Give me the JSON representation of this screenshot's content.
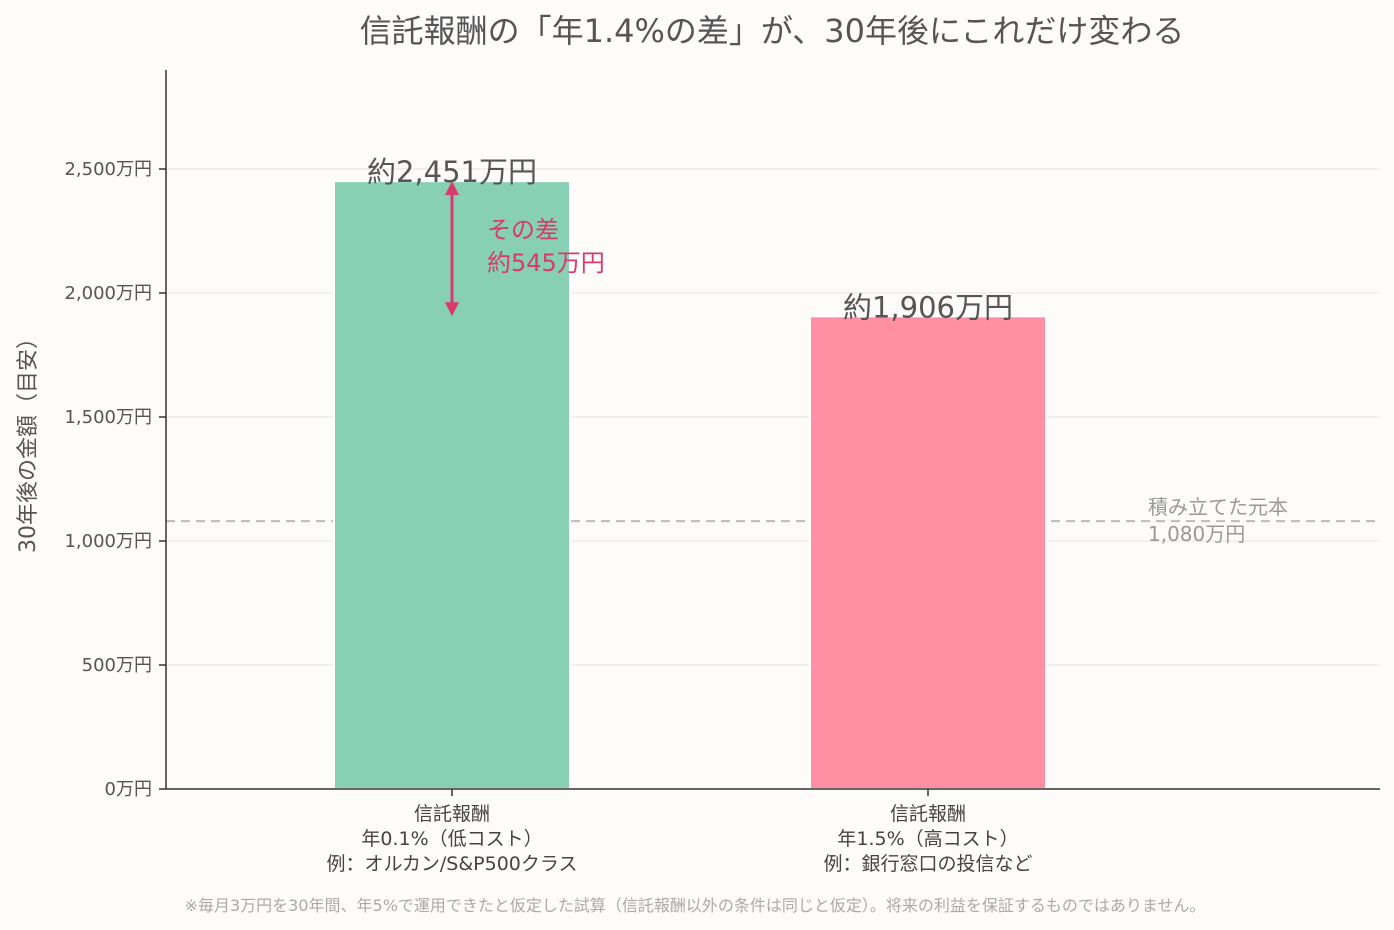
{
  "chart_data": {
    "type": "bar",
    "title": "信託報酬の「年1.4%の差」が、30年後にこれだけ変わる",
    "ylabel": "30年後の金額（目安）",
    "ylim": [
      0,
      2900
    ],
    "yticks": [
      0,
      500,
      1000,
      1500,
      2000,
      2500
    ],
    "ytick_labels": [
      "0万円",
      "500万円",
      "1,000万円",
      "1,500万円",
      "2,000万円",
      "2,500万円"
    ],
    "categories": [
      [
        "信託報酬",
        "年0.1%（低コスト）",
        "例：オルカン/S&P500クラス"
      ],
      [
        "信託報酬",
        "年1.5%（高コスト）",
        "例：銀行窓口の投信など"
      ]
    ],
    "values": [
      2451,
      1906
    ],
    "value_labels": [
      "約2,451万円",
      "約1,906万円"
    ],
    "colors": [
      "#87d0b4",
      "#ff8fa3"
    ],
    "grid": true,
    "baseline": {
      "value": 1080,
      "label_line1": "積み立てた元本",
      "label_line2": "1,080万円"
    },
    "difference": {
      "from": 2451,
      "to": 1906,
      "label_line1": "その差",
      "label_line2": "約545万円",
      "color": "#d63a6f"
    },
    "footnote": "※毎月3万円を30年間、年5%で運用できたと仮定した試算（信託報酬以外の条件は同じと仮定）。将来の利益を保証するものではありません。"
  }
}
